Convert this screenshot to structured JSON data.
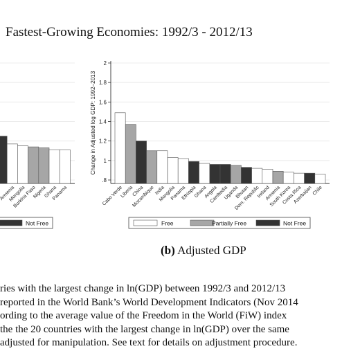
{
  "page": {
    "title": "Fastest-Growing Economies: 1992/3 - 2012/13",
    "caption_label": "(b)",
    "caption_text": "Adjusted GDP",
    "notes": [
      "ries with the largest change in ln(GDP) between 1992/3 and 2012/13",
      "reported in the World Bank’s World Development Indicators (Nov 2014",
      "ording to the average value of the Freedom in the World (FiW) index",
      "the the 20 countries with the largest change in ln(GDP) over the same",
      "adjusted for manipulation. See text for details on adjustment procedure."
    ]
  },
  "colors": {
    "Free": "#ffffff",
    "Partially Free": "#a6a6a6",
    "Not Free": "#333333"
  },
  "chart_data": [
    {
      "type": "bar",
      "panel": "left (partially visible)",
      "categories": [
        "",
        "Armenia",
        "Mongolia",
        "Burkina Faso",
        "Nigeria",
        "Ghana",
        "Panama"
      ],
      "values": [
        1.25,
        1.17,
        1.15,
        1.14,
        1.13,
        1.11,
        1.11
      ],
      "status": [
        "Not Free",
        "Free",
        "Free",
        "Partially Free",
        "Partially Free",
        "Free",
        "Free"
      ],
      "legend": [
        {
          "name": "Not Free",
          "color": "#333333"
        }
      ],
      "ylim": [
        0.8,
        2.0
      ]
    },
    {
      "type": "bar",
      "panel": "right",
      "ylabel": "Change in Adjusted log GDP: 1992–2013",
      "yticks": [
        "2",
        "1.8",
        "1.6",
        "1.4",
        "1.2",
        "1",
        ".8"
      ],
      "ytick_values": [
        2.0,
        1.8,
        1.6,
        1.4,
        1.2,
        1.0,
        0.8
      ],
      "ylim": [
        0.8,
        2.0
      ],
      "categories": [
        "Cabo Verde",
        "Liberia",
        "China",
        "Mozambique",
        "India",
        "Mongolia",
        "Panama",
        "Ethiopia",
        "Ghana",
        "Angola",
        "Cambodia",
        "Uganda",
        "Bhutan",
        "Dom. Republic",
        "Ireland",
        "Armenia",
        "South Korea",
        "Costa Rica",
        "Azerbaijan",
        "Chile"
      ],
      "values": [
        1.49,
        1.37,
        1.2,
        1.1,
        1.1,
        1.03,
        1.02,
        0.99,
        0.97,
        0.96,
        0.96,
        0.95,
        0.93,
        0.92,
        0.91,
        0.89,
        0.88,
        0.87,
        0.87,
        0.86
      ],
      "status": [
        "Free",
        "Partially Free",
        "Not Free",
        "Partially Free",
        "Free",
        "Free",
        "Free",
        "Not Free",
        "Free",
        "Not Free",
        "Not Free",
        "Partially Free",
        "Not Free",
        "Free",
        "Free",
        "Partially Free",
        "Free",
        "Free",
        "Not Free",
        "Free"
      ],
      "legend": [
        {
          "name": "Free",
          "color": "#ffffff"
        },
        {
          "name": "Partially Free",
          "color": "#a6a6a6"
        },
        {
          "name": "Not Free",
          "color": "#333333"
        }
      ],
      "grid": true,
      "legend_position": "bottom"
    }
  ]
}
